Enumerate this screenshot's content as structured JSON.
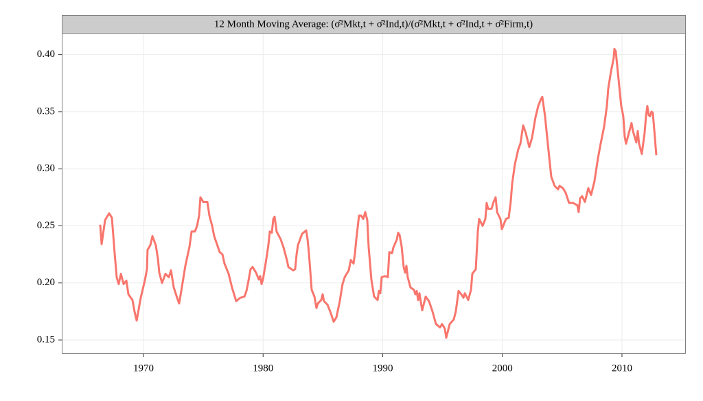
{
  "chart_data": {
    "type": "line",
    "title": "12 Month Moving Average: (σ̂²Mkt,t + σ̂²Ind,t)/(σ̂²Mkt,t + σ̂²Ind,t + σ̂²Firm,t)",
    "x": [
      1966.38,
      1966.5,
      1966.79,
      1967.13,
      1967.36,
      1967.59,
      1967.76,
      1967.93,
      1968.11,
      1968.34,
      1968.57,
      1968.74,
      1969.08,
      1969.25,
      1969.43,
      1969.77,
      1970.11,
      1970.29,
      1970.34,
      1970.57,
      1970.75,
      1971.03,
      1971.21,
      1971.32,
      1971.55,
      1971.84,
      1972.12,
      1972.3,
      1972.53,
      1972.81,
      1972.98,
      1973.16,
      1973.5,
      1973.85,
      1974.02,
      1974.3,
      1974.48,
      1974.65,
      1974.76,
      1974.99,
      1975.34,
      1975.51,
      1975.74,
      1975.91,
      1976.14,
      1976.37,
      1976.6,
      1976.77,
      1977.12,
      1977.4,
      1977.75,
      1978.09,
      1978.44,
      1978.61,
      1978.78,
      1978.95,
      1979.12,
      1979.41,
      1979.64,
      1979.76,
      1979.87,
      1979.99,
      1980.27,
      1980.44,
      1980.56,
      1980.73,
      1980.85,
      1980.96,
      1981.13,
      1981.48,
      1981.71,
      1981.99,
      1982.11,
      1982.51,
      1982.68,
      1982.8,
      1982.91,
      1983.26,
      1983.6,
      1983.72,
      1983.83,
      1983.94,
      1984.06,
      1984.29,
      1984.46,
      1984.58,
      1984.86,
      1984.98,
      1985.09,
      1985.38,
      1985.61,
      1985.9,
      1986.13,
      1986.41,
      1986.64,
      1986.82,
      1987.16,
      1987.33,
      1987.56,
      1987.68,
      1987.79,
      1988.02,
      1988.19,
      1988.37,
      1988.54,
      1988.71,
      1988.82,
      1988.94,
      1989.05,
      1989.28,
      1989.57,
      1989.68,
      1989.8,
      1989.91,
      1990.2,
      1990.43,
      1990.55,
      1990.78,
      1990.89,
      1991.18,
      1991.29,
      1991.41,
      1991.58,
      1991.75,
      1991.87,
      1991.98,
      1992.09,
      1992.32,
      1992.61,
      1992.73,
      1992.84,
      1992.96,
      1993.07,
      1993.3,
      1993.59,
      1993.87,
      1994.16,
      1994.45,
      1994.79,
      1994.96,
      1995.19,
      1995.31,
      1995.6,
      1995.94,
      1996.11,
      1996.34,
      1996.57,
      1996.75,
      1996.86,
      1997.15,
      1997.38,
      1997.49,
      1997.78,
      1997.95,
      1998.06,
      1998.35,
      1998.58,
      1998.69,
      1998.81,
      1999.1,
      1999.27,
      1999.44,
      1999.56,
      1999.84,
      1999.96,
      2000.3,
      2000.53,
      2000.7,
      2000.82,
      2001.05,
      2001.33,
      2001.51,
      2001.74,
      2001.97,
      2002.25,
      2002.48,
      2002.77,
      2003.0,
      2003.23,
      2003.34,
      2003.57,
      2003.8,
      2004.09,
      2004.37,
      2004.66,
      2004.78,
      2005.06,
      2005.29,
      2005.58,
      2005.92,
      2006.27,
      2006.38,
      2006.5,
      2006.67,
      2006.9,
      2007.19,
      2007.42,
      2007.7,
      2007.99,
      2008.22,
      2008.51,
      2008.74,
      2008.85,
      2009.08,
      2009.31,
      2009.37,
      2009.48,
      2009.71,
      2009.94,
      2010.11,
      2010.23,
      2010.34,
      2010.57,
      2010.8,
      2010.92,
      2011.2,
      2011.32,
      2011.43,
      2011.66,
      2011.89,
      2012.01,
      2012.12,
      2012.24,
      2012.35,
      2012.47,
      2012.58,
      2012.75,
      2012.87
    ],
    "series": [
      {
        "color": "#f8766d",
        "values": [
          0.251,
          0.234,
          0.255,
          0.261,
          0.257,
          0.226,
          0.205,
          0.199,
          0.208,
          0.199,
          0.202,
          0.19,
          0.185,
          0.175,
          0.167,
          0.187,
          0.202,
          0.212,
          0.229,
          0.233,
          0.241,
          0.233,
          0.221,
          0.209,
          0.2,
          0.208,
          0.205,
          0.211,
          0.196,
          0.187,
          0.182,
          0.193,
          0.215,
          0.232,
          0.245,
          0.245,
          0.25,
          0.259,
          0.275,
          0.271,
          0.271,
          0.259,
          0.25,
          0.241,
          0.234,
          0.227,
          0.225,
          0.217,
          0.208,
          0.196,
          0.184,
          0.187,
          0.188,
          0.193,
          0.202,
          0.212,
          0.214,
          0.209,
          0.203,
          0.206,
          0.199,
          0.203,
          0.221,
          0.233,
          0.245,
          0.244,
          0.256,
          0.258,
          0.245,
          0.238,
          0.231,
          0.22,
          0.214,
          0.211,
          0.212,
          0.225,
          0.233,
          0.243,
          0.246,
          0.238,
          0.226,
          0.211,
          0.194,
          0.188,
          0.178,
          0.182,
          0.185,
          0.19,
          0.184,
          0.181,
          0.175,
          0.166,
          0.17,
          0.184,
          0.199,
          0.205,
          0.211,
          0.22,
          0.217,
          0.226,
          0.238,
          0.259,
          0.259,
          0.256,
          0.262,
          0.255,
          0.232,
          0.217,
          0.203,
          0.188,
          0.185,
          0.193,
          0.191,
          0.205,
          0.206,
          0.205,
          0.227,
          0.226,
          0.231,
          0.238,
          0.244,
          0.242,
          0.232,
          0.214,
          0.209,
          0.215,
          0.205,
          0.196,
          0.194,
          0.19,
          0.193,
          0.185,
          0.191,
          0.176,
          0.188,
          0.184,
          0.175,
          0.164,
          0.161,
          0.164,
          0.16,
          0.152,
          0.164,
          0.168,
          0.175,
          0.193,
          0.19,
          0.187,
          0.191,
          0.185,
          0.194,
          0.208,
          0.212,
          0.245,
          0.256,
          0.25,
          0.256,
          0.27,
          0.265,
          0.265,
          0.271,
          0.275,
          0.262,
          0.256,
          0.247,
          0.256,
          0.257,
          0.271,
          0.287,
          0.304,
          0.317,
          0.322,
          0.338,
          0.331,
          0.319,
          0.327,
          0.345,
          0.355,
          0.361,
          0.363,
          0.346,
          0.322,
          0.293,
          0.285,
          0.282,
          0.285,
          0.283,
          0.279,
          0.27,
          0.27,
          0.268,
          0.262,
          0.274,
          0.276,
          0.271,
          0.283,
          0.277,
          0.289,
          0.309,
          0.322,
          0.337,
          0.355,
          0.37,
          0.385,
          0.397,
          0.405,
          0.403,
          0.379,
          0.355,
          0.346,
          0.328,
          0.322,
          0.331,
          0.34,
          0.333,
          0.323,
          0.333,
          0.322,
          0.313,
          0.331,
          0.346,
          0.355,
          0.347,
          0.346,
          0.35,
          0.349,
          0.328,
          0.312
        ]
      }
    ],
    "xlim": [
      1963.17,
      2015.34
    ],
    "ylim": [
      0.138,
      0.419
    ],
    "xticks": [
      1970,
      1980,
      1990,
      2000,
      2010
    ],
    "yticks": [
      {
        "value": 0.15,
        "label": "0.15"
      },
      {
        "value": 0.2,
        "label": "0.20"
      },
      {
        "value": 0.25,
        "label": "0.25"
      },
      {
        "value": 0.3,
        "label": "0.30"
      },
      {
        "value": 0.35,
        "label": "0.35"
      },
      {
        "value": 0.4,
        "label": "0.40"
      }
    ],
    "grid": true
  }
}
